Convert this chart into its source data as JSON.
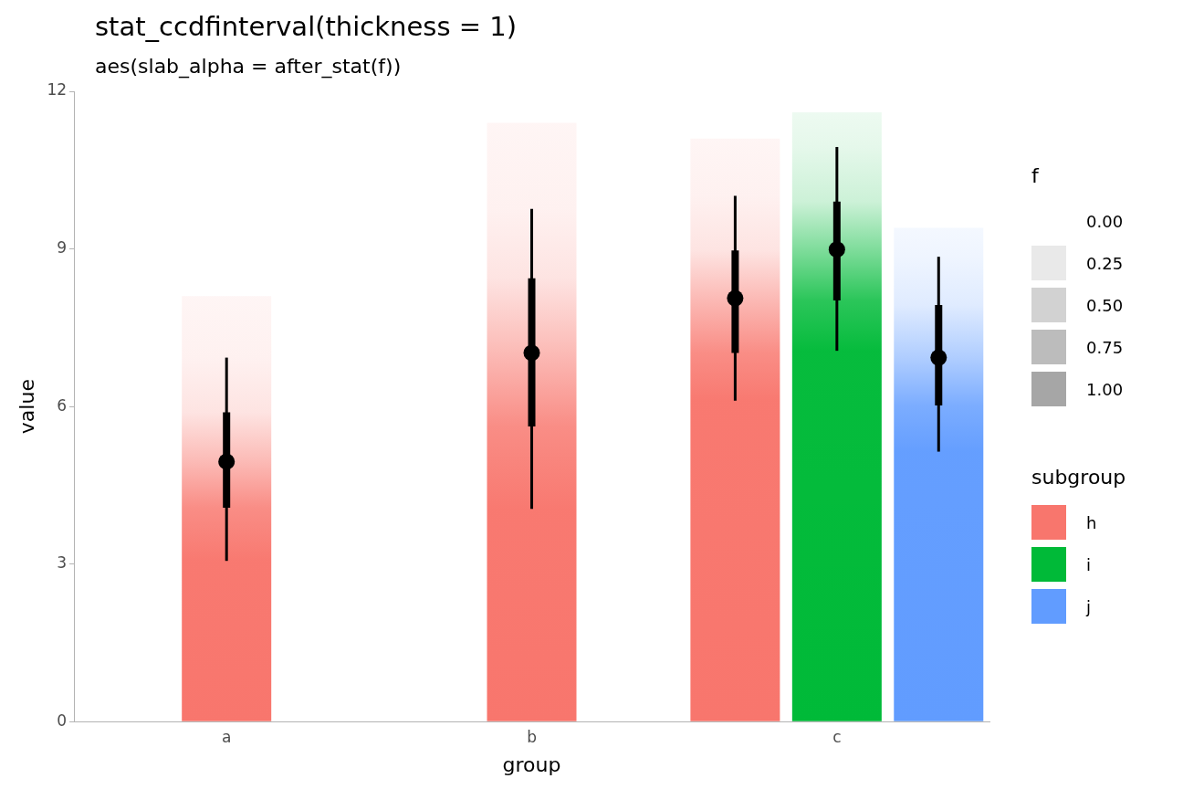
{
  "chart_data": {
    "type": "bar",
    "title": "stat_ccdfinterval(thickness = 1)",
    "subtitle": "aes(slab_alpha = after_stat(f))",
    "xlabel": "group",
    "ylabel": "value",
    "legend_title": "subgroup",
    "clabel": "f",
    "cticks": [
      {
        "value": 0,
        "label": "0.00"
      },
      {
        "value": 0.25,
        "label": "0.25"
      },
      {
        "value": 0.5,
        "label": "0.50"
      },
      {
        "value": 0.75,
        "label": "0.75"
      },
      {
        "value": 1,
        "label": "1.00"
      }
    ],
    "categories": [
      "a",
      "b",
      "c"
    ],
    "series": [
      {
        "name": "h",
        "color": "#f8766d",
        "values": [
          8.1,
          11.4,
          11.1
        ]
      },
      {
        "name": "i",
        "color": "#00ba38",
        "values": [
          null,
          null,
          11.6
        ]
      },
      {
        "name": "j",
        "color": "#619cff",
        "values": [
          null,
          null,
          9.4
        ]
      },
      {
        "type": "box",
        "color": "#000000",
        "boxes": [
          {
            "low": 3.06,
            "q1": 4.07,
            "median": 4.95,
            "q3": 5.89,
            "high": 6.93
          },
          {
            "low": 4.05,
            "q1": 5.62,
            "median": 7.02,
            "q3": 8.44,
            "high": 9.76
          },
          {
            "low": 6.11,
            "q1": 7.02,
            "median": 8.06,
            "q3": 8.97,
            "high": 10.01
          }
        ]
      },
      {
        "type": "box",
        "color": "#000000",
        "boxes": [
          null,
          null,
          {
            "low": 7.06,
            "q1": 8.02,
            "median": 8.99,
            "q3": 9.9,
            "high": 10.94
          }
        ]
      },
      {
        "type": "box",
        "color": "#000000",
        "boxes": [
          null,
          null,
          {
            "low": 5.14,
            "q1": 6.02,
            "median": 6.93,
            "q3": 7.93,
            "high": 8.85
          }
        ]
      }
    ],
    "ylim": [
      0,
      12
    ],
    "yticks": [
      0,
      3,
      6,
      9,
      12
    ],
    "grid": false,
    "legend": "right"
  }
}
